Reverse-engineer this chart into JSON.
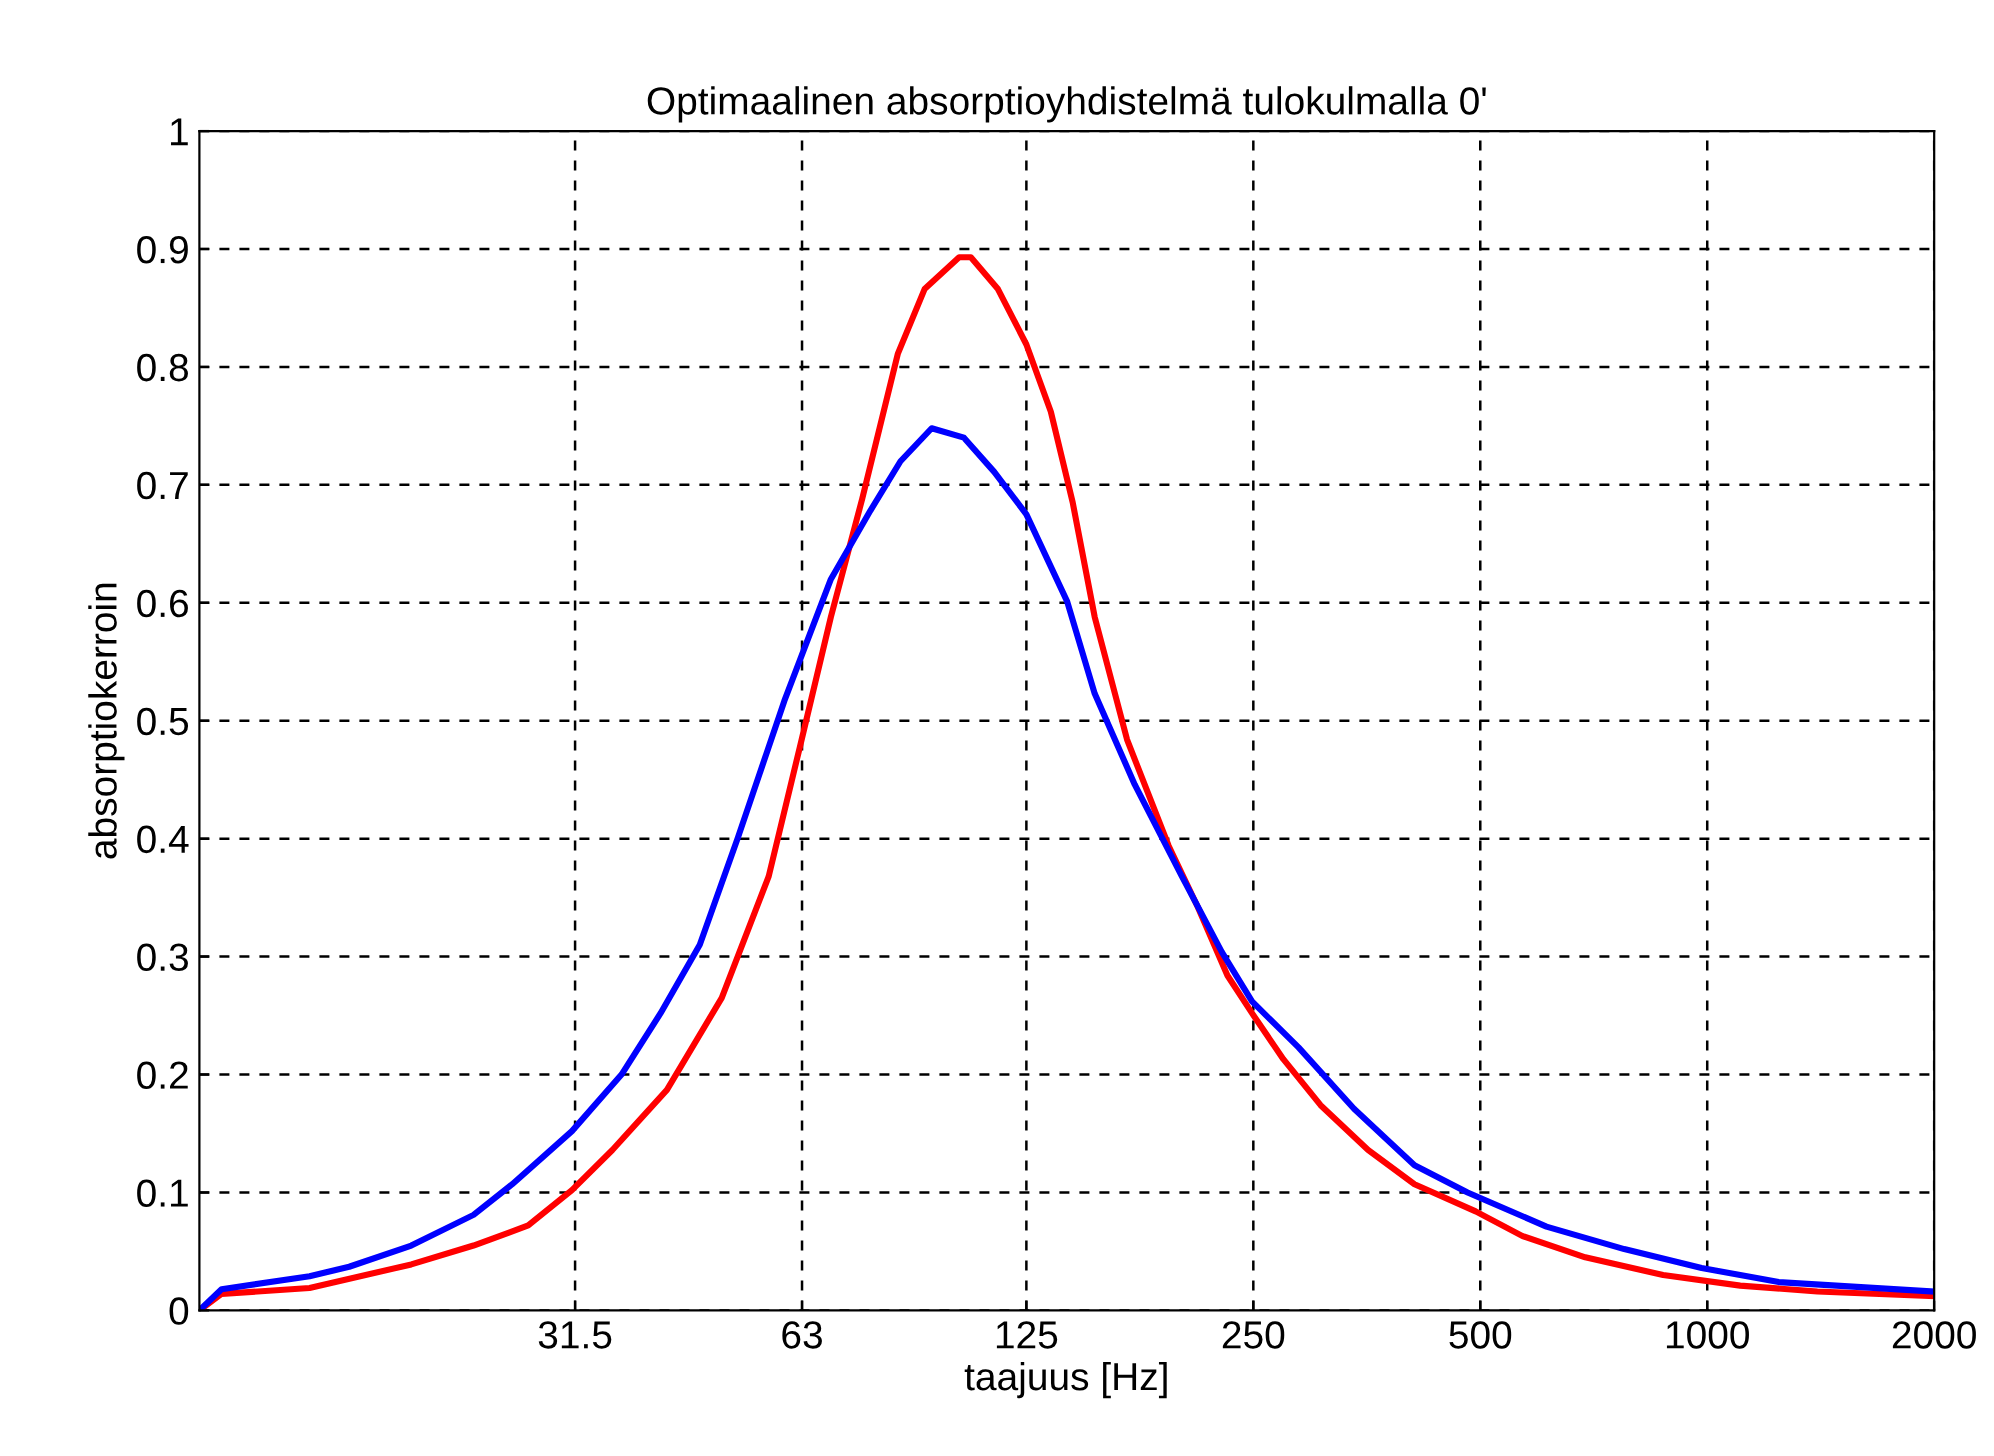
{
  "chart_data": {
    "type": "line",
    "title": "Optimaalinen absorptioyhdistelmä tulokulmalla 0'",
    "xlabel": "taajuus [Hz]",
    "ylabel": "absorptiokerroin",
    "log": "x",
    "xlim": [
      10,
      2000
    ],
    "xticks": [
      31.5,
      63,
      125,
      250,
      500,
      1000,
      2000
    ],
    "ylim": [
      0,
      1
    ],
    "yticks": [
      0,
      0.1,
      0.2,
      0.3,
      0.4,
      0.5,
      0.6,
      0.7,
      0.8,
      0.9,
      1
    ],
    "grid": true,
    "line_style": "solid",
    "series": [
      {
        "color": "#ff0000",
        "x": [
          10,
          10.7,
          14,
          19.1,
          23.1,
          27.3,
          31.2,
          35.3,
          41.7,
          49.3,
          56.9,
          62.6,
          68.8,
          75.7,
          84.4,
          91.6,
          101.8,
          105.5,
          114.6,
          125,
          134.7,
          144,
          154,
          170,
          193,
          211,
          231,
          249,
          274,
          307,
          355,
          409,
          493,
          569,
          689,
          874,
          1106,
          1400,
          2000
        ],
        "values": [
          0,
          0.014,
          0.019,
          0.039,
          0.055,
          0.072,
          0.102,
          0.136,
          0.187,
          0.265,
          0.368,
          0.478,
          0.588,
          0.688,
          0.811,
          0.866,
          0.893,
          0.893,
          0.866,
          0.819,
          0.762,
          0.685,
          0.588,
          0.484,
          0.394,
          0.342,
          0.284,
          0.252,
          0.213,
          0.174,
          0.136,
          0.107,
          0.084,
          0.063,
          0.045,
          0.03,
          0.021,
          0.016,
          0.012
        ]
      },
      {
        "color": "#0000ff",
        "x": [
          10,
          10.7,
          14,
          15.8,
          19.1,
          23.1,
          26,
          31.2,
          36.3,
          40.9,
          46.1,
          51.8,
          59.7,
          68.8,
          77.6,
          85.1,
          93.6,
          103.3,
          113.3,
          125,
          141.6,
          154,
          174,
          201,
          227,
          249,
          287,
          340,
          409,
          481,
          612,
          776,
          983,
          1244,
          2000
        ],
        "values": [
          0,
          0.018,
          0.029,
          0.037,
          0.055,
          0.081,
          0.107,
          0.152,
          0.2,
          0.252,
          0.31,
          0.401,
          0.517,
          0.62,
          0.678,
          0.72,
          0.748,
          0.74,
          0.711,
          0.675,
          0.601,
          0.523,
          0.446,
          0.368,
          0.304,
          0.262,
          0.223,
          0.171,
          0.123,
          0.1,
          0.071,
          0.052,
          0.036,
          0.024,
          0.016
        ]
      }
    ]
  }
}
